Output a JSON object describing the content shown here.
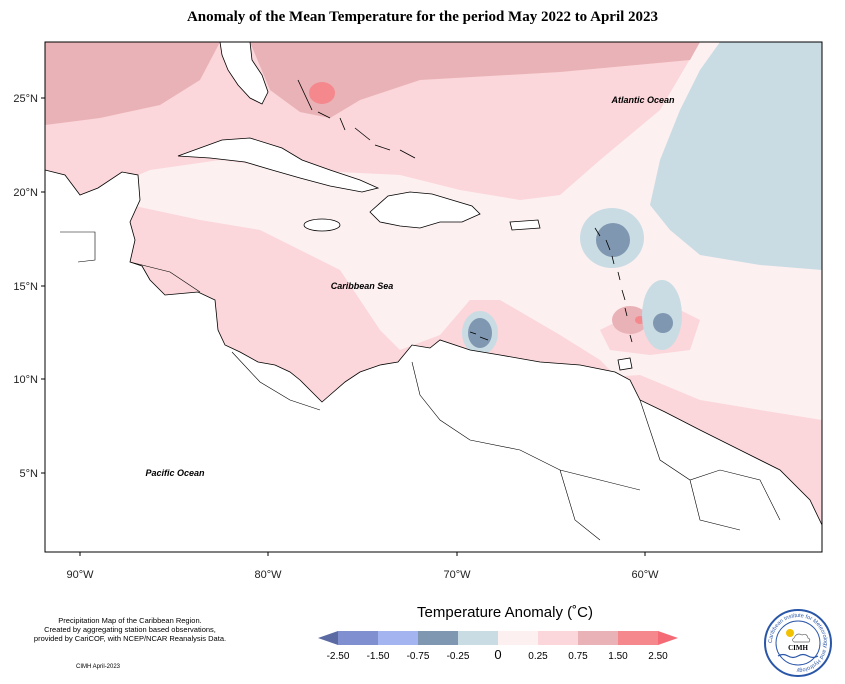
{
  "title": "Anomaly of the Mean Temperature for the period May 2022 to April 2023",
  "axes": {
    "lat_labels": [
      "25°N",
      "20°N",
      "15°N",
      "10°N",
      "5°N"
    ],
    "lon_labels": [
      "90°W",
      "80°W",
      "70°W",
      "60°W"
    ]
  },
  "labels": {
    "atlantic": "Atlantic Ocean",
    "caribbean": "Caribbean Sea",
    "pacific": "Pacific Ocean"
  },
  "credits": {
    "line1": "Precipitation Map of the Caribbean Region.",
    "line2": "Created by aggregating station based observations,",
    "line3": "provided by CariCOF, with NCEP/NCAR Reanalysis Data.",
    "date": "CIMH April-2023"
  },
  "legend": {
    "title": "Temperature Anomaly (˚C)",
    "ticks": [
      "-2.50",
      "-1.50",
      "-0.75",
      "-0.25",
      "0",
      "0.25",
      "0.75",
      "1.50",
      "2.50"
    ],
    "colors": [
      "#5b6aa3",
      "#7f8fd0",
      "#a3b4f0",
      "#7f97b0",
      "#c9dce4",
      "#fdf0f0",
      "#fbd6da",
      "#e9b2b6",
      "#f4888d",
      "#f46a75"
    ]
  },
  "logo": {
    "name": "CIMH",
    "ring_text": "Caribbean Institute for Meteorology and Hydrology"
  },
  "colors": {
    "land": "#ffffff",
    "coast": "#000000"
  }
}
